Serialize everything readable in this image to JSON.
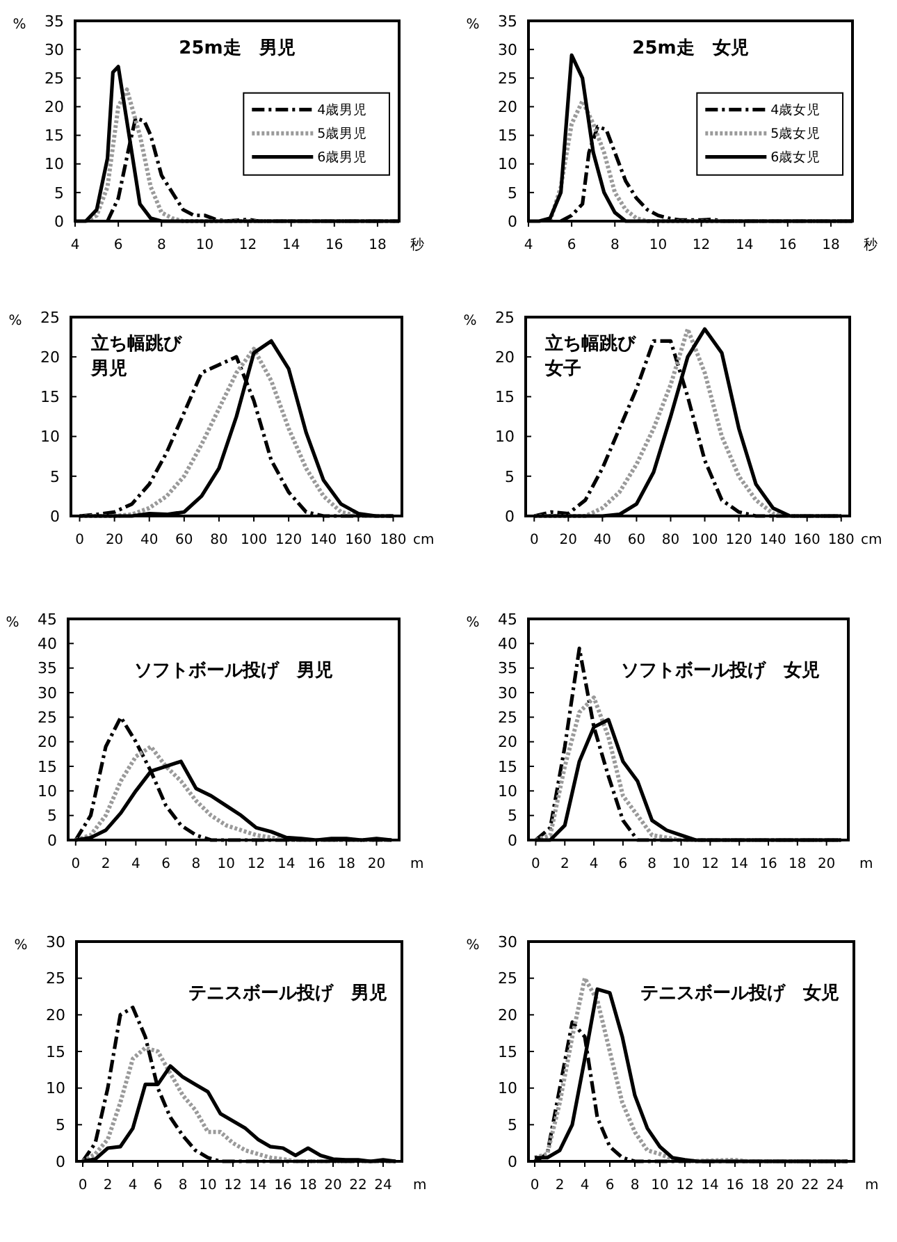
{
  "chart_data": [
    {
      "type": "line",
      "title": "25m走　男児",
      "xlabel": "秒",
      "ylabel": "%",
      "xlim": [
        4,
        19
      ],
      "xticks": [
        4,
        6,
        8,
        10,
        12,
        14,
        16,
        18
      ],
      "ylim": [
        0,
        35
      ],
      "yticks": [
        0,
        5,
        10,
        15,
        20,
        25,
        30,
        35
      ],
      "legend": "right",
      "series": [
        {
          "name": "4歳男児",
          "color": "#000000",
          "line_style": "dashed",
          "x": [
            5.5,
            6,
            6.5,
            6.8,
            7.2,
            7.5,
            8,
            8.5,
            9,
            9.5,
            10,
            10.5,
            11,
            12,
            12.5,
            19
          ],
          "values": [
            0,
            4,
            13,
            18,
            17.5,
            15,
            8,
            5,
            2,
            1,
            1,
            0.3,
            0,
            0.3,
            0,
            0
          ]
        },
        {
          "name": "5歳男児",
          "color": "#9a9a9a",
          "line_style": "dotted",
          "x": [
            4.5,
            5,
            5.5,
            6,
            6.4,
            7,
            7.5,
            8,
            8.5,
            9,
            19
          ],
          "values": [
            0,
            1,
            6,
            20,
            23,
            15,
            6,
            1.5,
            0.5,
            0,
            0
          ]
        },
        {
          "name": "6歳男児",
          "color": "#000000",
          "line_style": "solid",
          "x": [
            4,
            4.5,
            5,
            5.5,
            5.75,
            6,
            6.5,
            7,
            7.5,
            8,
            19
          ],
          "values": [
            0,
            0,
            2,
            11,
            26,
            27,
            15,
            3,
            0.5,
            0,
            0
          ]
        }
      ]
    },
    {
      "type": "line",
      "title": "25m走　女児",
      "xlabel": "秒",
      "ylabel": "%",
      "xlim": [
        4,
        19
      ],
      "xticks": [
        4,
        6,
        8,
        10,
        12,
        14,
        16,
        18
      ],
      "ylim": [
        0,
        35
      ],
      "yticks": [
        0,
        5,
        10,
        15,
        20,
        25,
        30,
        35
      ],
      "legend": "right",
      "series": [
        {
          "name": "4歳女児",
          "color": "#000000",
          "line_style": "dashed",
          "x": [
            5.5,
            6,
            6.5,
            6.8,
            7.2,
            7.6,
            8,
            8.5,
            9,
            9.5,
            10,
            10.5,
            11,
            12,
            12.5,
            13,
            19
          ],
          "values": [
            0,
            1,
            3,
            12,
            16.5,
            16,
            12,
            7,
            4,
            2,
            1,
            0.5,
            0.2,
            0.2,
            0.3,
            0,
            0
          ]
        },
        {
          "name": "5歳女児",
          "color": "#9a9a9a",
          "line_style": "dotted",
          "x": [
            5,
            5.5,
            6,
            6.5,
            7,
            7.5,
            8,
            8.5,
            9,
            9.5,
            19
          ],
          "values": [
            0,
            6,
            17,
            21,
            17,
            12,
            5,
            2,
            0.5,
            0,
            0
          ]
        },
        {
          "name": "6歳女児",
          "color": "#000000",
          "line_style": "solid",
          "x": [
            4,
            4.5,
            5,
            5.5,
            6,
            6.5,
            7,
            7.5,
            8,
            8.5,
            19
          ],
          "values": [
            0,
            0,
            0.5,
            5,
            29,
            25,
            12,
            5,
            1.5,
            0,
            0
          ]
        }
      ]
    },
    {
      "type": "line",
      "title": "立ち幅跳び男児",
      "xlabel": "cm",
      "ylabel": "%",
      "xlim": [
        -5,
        185
      ],
      "xticks": [
        0,
        20,
        40,
        60,
        80,
        100,
        120,
        140,
        160,
        180
      ],
      "ylim": [
        0,
        25
      ],
      "yticks": [
        0,
        5,
        10,
        15,
        20,
        25
      ],
      "series": [
        {
          "color": "#000000",
          "line_style": "dashed",
          "x": [
            0,
            10,
            20,
            30,
            40,
            50,
            60,
            70,
            80,
            90,
            100,
            110,
            120,
            130,
            140,
            180
          ],
          "values": [
            0,
            0.2,
            0.5,
            1.5,
            4,
            8,
            13,
            18,
            19,
            20,
            14.5,
            7,
            3,
            0.5,
            0,
            0
          ]
        },
        {
          "color": "#9a9a9a",
          "line_style": "dotted",
          "x": [
            0,
            20,
            30,
            40,
            50,
            60,
            70,
            80,
            90,
            100,
            110,
            120,
            130,
            140,
            150,
            160,
            180
          ],
          "values": [
            0,
            0,
            0.2,
            1,
            2.5,
            5,
            9,
            13.5,
            18,
            21,
            17,
            11,
            6,
            2.5,
            0.5,
            0,
            0
          ]
        },
        {
          "color": "#000000",
          "line_style": "solid",
          "x": [
            0,
            30,
            40,
            50,
            60,
            70,
            80,
            90,
            100,
            110,
            120,
            130,
            140,
            150,
            160,
            170,
            180
          ],
          "values": [
            0,
            0,
            0.3,
            0.2,
            0.5,
            2.5,
            6,
            12.5,
            20.5,
            22,
            18.5,
            10.5,
            4.5,
            1.5,
            0.3,
            0,
            0
          ]
        }
      ]
    },
    {
      "type": "line",
      "title": "立ち幅跳び女子",
      "xlabel": "cm",
      "ylabel": "%",
      "xlim": [
        -5,
        185
      ],
      "xticks": [
        0,
        20,
        40,
        60,
        80,
        100,
        120,
        140,
        160,
        180
      ],
      "ylim": [
        0,
        25
      ],
      "yticks": [
        0,
        5,
        10,
        15,
        20,
        25
      ],
      "series": [
        {
          "color": "#000000",
          "line_style": "dashed",
          "x": [
            0,
            10,
            20,
            30,
            40,
            50,
            60,
            70,
            80,
            90,
            100,
            110,
            120,
            130,
            180
          ],
          "values": [
            0,
            0.5,
            0.3,
            2,
            6,
            11,
            16,
            22,
            22,
            15,
            7,
            2,
            0.5,
            0,
            0
          ]
        },
        {
          "color": "#9a9a9a",
          "line_style": "dotted",
          "x": [
            0,
            30,
            40,
            50,
            60,
            70,
            80,
            90,
            100,
            110,
            120,
            130,
            140,
            150,
            180
          ],
          "values": [
            0,
            0,
            1,
            3,
            6.5,
            11,
            16.5,
            23.5,
            18,
            10,
            5,
            2,
            0.3,
            0,
            0
          ]
        },
        {
          "color": "#000000",
          "line_style": "solid",
          "x": [
            0,
            40,
            50,
            60,
            70,
            80,
            90,
            100,
            110,
            120,
            130,
            140,
            150,
            180
          ],
          "values": [
            0,
            0,
            0.2,
            1.5,
            5.5,
            12.5,
            20,
            23.5,
            20.5,
            11,
            4,
            1,
            0,
            0
          ]
        }
      ]
    },
    {
      "type": "line",
      "title": "ソフトボール投げ　男児",
      "xlabel": "m",
      "ylabel": "%",
      "xlim": [
        -0.5,
        21.5
      ],
      "xticks": [
        0,
        2,
        4,
        6,
        8,
        10,
        12,
        14,
        16,
        18,
        20
      ],
      "ylim": [
        0,
        45
      ],
      "yticks": [
        0,
        5,
        10,
        15,
        20,
        25,
        30,
        35,
        40,
        45
      ],
      "series": [
        {
          "color": "#000000",
          "line_style": "dashed",
          "x": [
            0,
            1,
            2,
            3,
            4,
            5,
            6,
            7,
            8,
            9,
            21
          ],
          "values": [
            0,
            5,
            19,
            25,
            20,
            14,
            7,
            3,
            1,
            0,
            0
          ]
        },
        {
          "color": "#9a9a9a",
          "line_style": "dotted",
          "x": [
            0,
            1,
            2,
            3,
            4,
            5,
            6,
            7,
            8,
            9,
            10,
            11,
            12,
            13,
            14,
            21
          ],
          "values": [
            0,
            1,
            5,
            12,
            17,
            19,
            15,
            12,
            8,
            5,
            3,
            2,
            1,
            0.5,
            0,
            0
          ]
        },
        {
          "color": "#000000",
          "line_style": "solid",
          "x": [
            0,
            1,
            2,
            3,
            4,
            5,
            6,
            7,
            8,
            9,
            10,
            11,
            12,
            13,
            14,
            15,
            16,
            17,
            18,
            19,
            20,
            21
          ],
          "values": [
            0,
            0.5,
            2,
            5.5,
            10,
            14,
            15,
            16,
            10.5,
            9,
            7,
            5,
            2.5,
            1.7,
            0.5,
            0.3,
            0,
            0.3,
            0.3,
            0,
            0.3,
            0
          ]
        }
      ]
    },
    {
      "type": "line",
      "title": "ソフトボール投げ　女児",
      "xlabel": "m",
      "ylabel": "%",
      "xlim": [
        -0.5,
        21.5
      ],
      "xticks": [
        0,
        2,
        4,
        6,
        8,
        10,
        12,
        14,
        16,
        18,
        20
      ],
      "ylim": [
        0,
        45
      ],
      "yticks": [
        0,
        5,
        10,
        15,
        20,
        25,
        30,
        35,
        40,
        45
      ],
      "series": [
        {
          "color": "#000000",
          "line_style": "dashed",
          "x": [
            0,
            1,
            2,
            3,
            4,
            5,
            6,
            7,
            21
          ],
          "values": [
            0,
            2.5,
            19,
            39,
            23,
            13,
            4,
            0,
            0
          ]
        },
        {
          "color": "#9a9a9a",
          "line_style": "dotted",
          "x": [
            0,
            1,
            2,
            3,
            4,
            5,
            6,
            7,
            8,
            9,
            10,
            21
          ],
          "values": [
            0,
            1,
            15,
            26,
            29,
            21,
            9,
            5,
            1,
            0.5,
            0,
            0
          ]
        },
        {
          "color": "#000000",
          "line_style": "solid",
          "x": [
            0,
            1,
            2,
            3,
            4,
            5,
            6,
            7,
            8,
            9,
            10,
            11,
            21
          ],
          "values": [
            0,
            0,
            3,
            16,
            23,
            24.5,
            16,
            12,
            4,
            2,
            1,
            0,
            0
          ]
        }
      ]
    },
    {
      "type": "line",
      "title": "テニスボール投げ　男児",
      "xlabel": "m",
      "ylabel": "%",
      "xlim": [
        -0.5,
        25.5
      ],
      "xticks": [
        0,
        2,
        4,
        6,
        8,
        10,
        12,
        14,
        16,
        18,
        20,
        22,
        24
      ],
      "ylim": [
        0,
        30
      ],
      "yticks": [
        0,
        5,
        10,
        15,
        20,
        25,
        30
      ],
      "series": [
        {
          "color": "#000000",
          "line_style": "dashed",
          "x": [
            0,
            1,
            2,
            3,
            4,
            5,
            6,
            7,
            8,
            9,
            10,
            11,
            25
          ],
          "values": [
            0,
            2.5,
            10,
            20,
            21,
            17,
            10,
            6,
            3.5,
            1.5,
            0.5,
            0,
            0
          ]
        },
        {
          "color": "#9a9a9a",
          "line_style": "dotted",
          "x": [
            0,
            1,
            2,
            3,
            4,
            5,
            6,
            7,
            8,
            9,
            10,
            11,
            12,
            13,
            14,
            15,
            16,
            17,
            25
          ],
          "values": [
            0,
            1,
            3,
            8,
            14,
            15.5,
            15,
            12,
            9,
            7,
            4,
            4,
            2.5,
            1.5,
            1,
            0.5,
            0.3,
            0,
            0
          ]
        },
        {
          "color": "#000000",
          "line_style": "solid",
          "x": [
            0,
            1,
            2,
            3,
            4,
            5,
            6,
            7,
            8,
            9,
            10,
            11,
            12,
            13,
            14,
            15,
            16,
            17,
            18,
            19,
            20,
            21,
            22,
            23,
            24,
            25
          ],
          "values": [
            0,
            0.3,
            1.8,
            2,
            4.5,
            10.5,
            10.5,
            13,
            11.5,
            10.5,
            9.5,
            6.5,
            5.5,
            4.5,
            3,
            2,
            1.8,
            0.8,
            1.8,
            0.8,
            0.3,
            0.2,
            0.2,
            0,
            0.2,
            0
          ]
        }
      ]
    },
    {
      "type": "line",
      "title": "テニスボール投げ　女児",
      "xlabel": "m",
      "ylabel": "%",
      "xlim": [
        -0.5,
        25.5
      ],
      "xticks": [
        0,
        2,
        4,
        6,
        8,
        10,
        12,
        14,
        16,
        18,
        20,
        22,
        24
      ],
      "ylim": [
        0,
        30
      ],
      "yticks": [
        0,
        5,
        10,
        15,
        20,
        25,
        30
      ],
      "series": [
        {
          "color": "#000000",
          "line_style": "dashed",
          "x": [
            0,
            1,
            2,
            3,
            4,
            5,
            6,
            7,
            8,
            25
          ],
          "values": [
            0,
            1,
            10,
            19,
            17,
            6,
            2,
            0.5,
            0,
            0
          ]
        },
        {
          "color": "#9a9a9a",
          "line_style": "dotted",
          "x": [
            0,
            1,
            2,
            3,
            4,
            5,
            6,
            7,
            8,
            9,
            10,
            11,
            12,
            16,
            17,
            25
          ],
          "values": [
            0.5,
            1,
            8,
            17,
            25,
            22,
            15,
            8,
            4,
            1.5,
            1,
            0.3,
            0,
            0.2,
            0,
            0
          ]
        },
        {
          "color": "#000000",
          "line_style": "solid",
          "x": [
            0,
            1,
            2,
            3,
            4,
            5,
            6,
            7,
            8,
            9,
            10,
            11,
            12,
            13,
            25
          ],
          "values": [
            0.5,
            0.5,
            1.5,
            5,
            14,
            23.5,
            23,
            17,
            9,
            4.5,
            2,
            0.5,
            0.2,
            0,
            0
          ]
        }
      ]
    }
  ]
}
